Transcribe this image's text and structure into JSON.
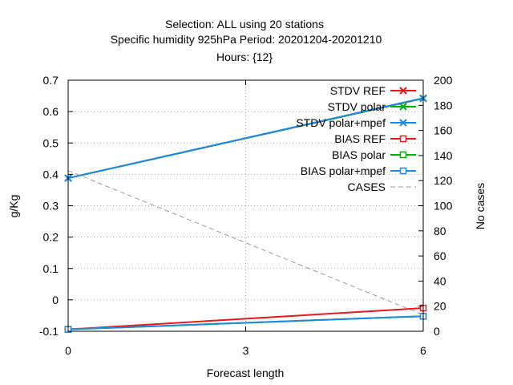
{
  "chart_data": {
    "type": "line",
    "title_lines": [
      "Selection: ALL using    20 stations",
      "Specific humidity 925hPa   Period: 20201204-20201210",
      "Hours: {12}"
    ],
    "xlabel": "Forecast length",
    "ylabel": "g/Kg",
    "y2label": "No cases",
    "x": [
      0,
      3,
      6
    ],
    "xlim": [
      0,
      6
    ],
    "ylim": [
      -0.1,
      0.7
    ],
    "y2lim": [
      0,
      200
    ],
    "xticks": [
      "0",
      "3",
      "6"
    ],
    "yticks": [
      "-0.1",
      "0",
      "0.1",
      "0.2",
      "0.3",
      "0.4",
      "0.5",
      "0.6",
      "0.7"
    ],
    "y2ticks": [
      "0",
      "20",
      "40",
      "60",
      "80",
      "100",
      "120",
      "140",
      "160",
      "180",
      "200"
    ],
    "grid": true,
    "legend_position": "top-right",
    "series": [
      {
        "name": "STDV REF",
        "axis": "y",
        "color": "#e41a1c",
        "marker": "x",
        "x": [
          0,
          6
        ],
        "values": [
          0.388,
          0.642
        ]
      },
      {
        "name": "STDV polar",
        "axis": "y",
        "color": "#00b000",
        "marker": "x",
        "x": [
          0,
          6
        ],
        "values": [
          0.388,
          0.642
        ]
      },
      {
        "name": "STDV polar+mpef",
        "axis": "y",
        "color": "#1e88e5",
        "marker": "x",
        "x": [
          0,
          6
        ],
        "values": [
          0.388,
          0.643
        ]
      },
      {
        "name": "BIAS REF",
        "axis": "y",
        "color": "#e41a1c",
        "marker": "square",
        "x": [
          0,
          6
        ],
        "values": [
          -0.094,
          -0.026
        ]
      },
      {
        "name": "BIAS polar",
        "axis": "y",
        "color": "#00b000",
        "marker": "square",
        "x": [
          0,
          6
        ],
        "values": [
          -0.094,
          -0.052
        ]
      },
      {
        "name": "BIAS polar+mpef",
        "axis": "y",
        "color": "#1e88e5",
        "marker": "square",
        "x": [
          0,
          6
        ],
        "values": [
          -0.094,
          -0.052
        ]
      },
      {
        "name": "CASES",
        "axis": "y2",
        "color": "#999999",
        "marker": "none",
        "dashed": true,
        "x": [
          0,
          6
        ],
        "values": [
          128,
          13
        ]
      }
    ]
  }
}
